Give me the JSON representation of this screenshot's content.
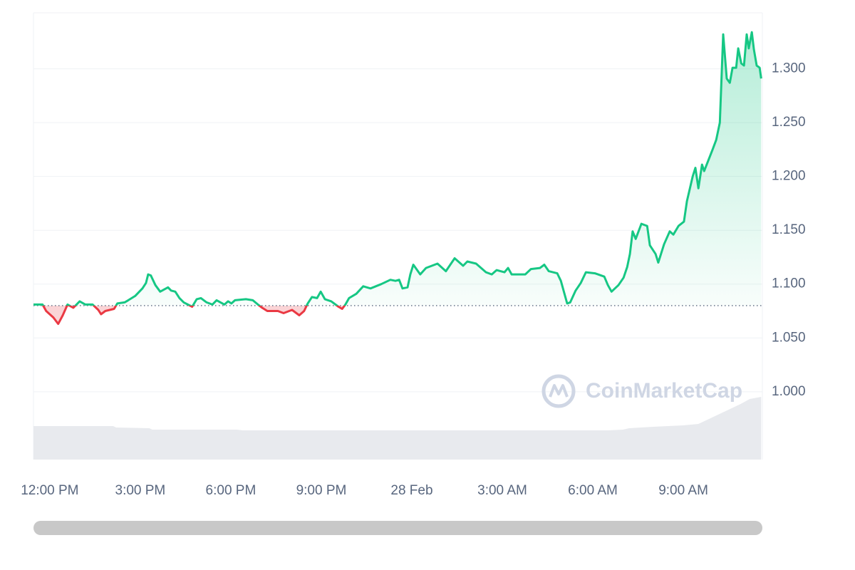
{
  "chart_data": {
    "type": "line",
    "watermark": "CoinMarketCap",
    "baseline": 1.08,
    "up_color": "#16c784",
    "down_color": "#ea3943",
    "xlim": [
      -0.54,
      23.62
    ],
    "ylim": [
      0.937,
      1.352
    ],
    "grid": true,
    "xticks": [
      {
        "value": 0,
        "label": "12:00 PM"
      },
      {
        "value": 3,
        "label": "3:00 PM"
      },
      {
        "value": 6,
        "label": "6:00 PM"
      },
      {
        "value": 9,
        "label": "9:00 PM"
      },
      {
        "value": 12,
        "label": "28 Feb"
      },
      {
        "value": 15,
        "label": "3:00 AM"
      },
      {
        "value": 18,
        "label": "6:00 AM"
      },
      {
        "value": 21,
        "label": "9:00 AM"
      }
    ],
    "yticks": [
      {
        "value": 1.0,
        "label": "1.000"
      },
      {
        "value": 1.05,
        "label": "1.050"
      },
      {
        "value": 1.1,
        "label": "1.100"
      },
      {
        "value": 1.15,
        "label": "1.150"
      },
      {
        "value": 1.2,
        "label": "1.200"
      },
      {
        "value": 1.25,
        "label": "1.250"
      },
      {
        "value": 1.3,
        "label": "1.300"
      }
    ],
    "x": [
      -0.54,
      -0.24,
      -0.12,
      0.12,
      0.28,
      0.43,
      0.59,
      0.78,
      0.99,
      1.18,
      1.42,
      1.61,
      1.7,
      1.84,
      2.13,
      2.24,
      2.48,
      2.6,
      2.83,
      3.07,
      3.19,
      3.26,
      3.35,
      3.5,
      3.66,
      3.92,
      4.02,
      4.16,
      4.3,
      4.44,
      4.72,
      4.87,
      5.01,
      5.2,
      5.39,
      5.53,
      5.79,
      5.91,
      6.02,
      6.14,
      6.5,
      6.73,
      6.9,
      7.04,
      7.21,
      7.56,
      7.75,
      8.03,
      8.27,
      8.43,
      8.55,
      8.69,
      8.86,
      8.98,
      9.12,
      9.33,
      9.57,
      9.69,
      9.8,
      9.92,
      10.16,
      10.39,
      10.63,
      10.99,
      11.29,
      11.46,
      11.58,
      11.69,
      11.86,
      11.95,
      12.05,
      12.28,
      12.47,
      12.85,
      13.13,
      13.42,
      13.7,
      13.84,
      14.13,
      14.46,
      14.65,
      14.81,
      15.07,
      15.19,
      15.31,
      15.76,
      15.95,
      16.25,
      16.39,
      16.54,
      16.82,
      16.94,
      17.15,
      17.25,
      17.43,
      17.6,
      17.77,
      18.07,
      18.38,
      18.5,
      18.62,
      18.85,
      19.02,
      19.14,
      19.23,
      19.32,
      19.42,
      19.61,
      19.8,
      19.89,
      20.08,
      20.17,
      20.36,
      20.55,
      20.67,
      20.84,
      21.02,
      21.12,
      21.31,
      21.4,
      21.5,
      21.62,
      21.69,
      21.97,
      22.09,
      22.21,
      22.32,
      22.44,
      22.54,
      22.63,
      22.75,
      22.82,
      22.92,
      23.01,
      23.1,
      23.17,
      23.27,
      23.34,
      23.43,
      23.53,
      23.58
    ],
    "values": [
      1.081,
      1.081,
      1.075,
      1.069,
      1.063,
      1.071,
      1.081,
      1.078,
      1.084,
      1.081,
      1.081,
      1.076,
      1.072,
      1.075,
      1.077,
      1.082,
      1.083,
      1.085,
      1.089,
      1.096,
      1.101,
      1.109,
      1.108,
      1.099,
      1.093,
      1.097,
      1.094,
      1.093,
      1.087,
      1.083,
      1.079,
      1.086,
      1.087,
      1.083,
      1.081,
      1.085,
      1.081,
      1.084,
      1.082,
      1.085,
      1.086,
      1.085,
      1.081,
      1.078,
      1.075,
      1.075,
      1.073,
      1.076,
      1.071,
      1.075,
      1.082,
      1.088,
      1.087,
      1.093,
      1.086,
      1.084,
      1.079,
      1.077,
      1.081,
      1.087,
      1.091,
      1.098,
      1.096,
      1.1,
      1.104,
      1.103,
      1.104,
      1.096,
      1.097,
      1.109,
      1.118,
      1.109,
      1.115,
      1.119,
      1.112,
      1.124,
      1.117,
      1.121,
      1.119,
      1.111,
      1.109,
      1.113,
      1.111,
      1.115,
      1.109,
      1.109,
      1.114,
      1.115,
      1.118,
      1.112,
      1.11,
      1.103,
      1.082,
      1.083,
      1.094,
      1.101,
      1.111,
      1.11,
      1.107,
      1.099,
      1.093,
      1.099,
      1.106,
      1.116,
      1.128,
      1.149,
      1.142,
      1.156,
      1.154,
      1.136,
      1.128,
      1.12,
      1.137,
      1.149,
      1.146,
      1.154,
      1.158,
      1.177,
      1.2,
      1.208,
      1.189,
      1.211,
      1.205,
      1.225,
      1.234,
      1.25,
      1.332,
      1.291,
      1.287,
      1.301,
      1.301,
      1.319,
      1.305,
      1.303,
      1.332,
      1.319,
      1.334,
      1.318,
      1.303,
      1.301,
      1.291
    ],
    "volume": {
      "color": "#e8eaee",
      "ylim": [
        0,
        100
      ],
      "x": [
        -0.54,
        2.1,
        2.2,
        3.3,
        3.4,
        6.2,
        6.4,
        18.5,
        19.0,
        19.2,
        20,
        21,
        21.5,
        22,
        22.5,
        22.9,
        23.2,
        23.58
      ],
      "values": [
        47,
        47,
        45,
        44,
        42,
        42,
        41,
        41,
        42,
        44,
        46,
        48,
        50,
        60,
        70,
        78,
        85,
        88
      ]
    }
  }
}
